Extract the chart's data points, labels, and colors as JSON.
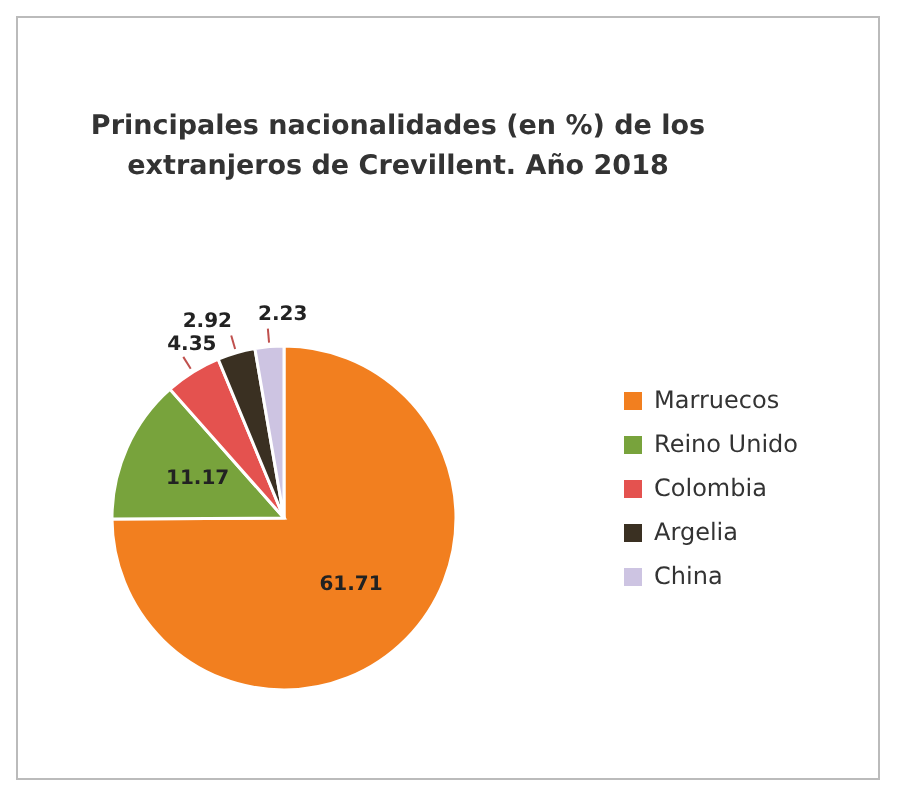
{
  "chart_data": {
    "type": "pie",
    "title": "Principales nacionalidades  (en %) de los extranjeros de Crevillent. Año 2018",
    "categories": [
      "Marruecos",
      "Reino Unido",
      "Colombia",
      "Argelia",
      "China"
    ],
    "values": [
      61.71,
      11.17,
      4.35,
      2.92,
      2.23
    ],
    "colors": [
      "#f27f1f",
      "#78a33c",
      "#e4524f",
      "#3a3022",
      "#cdc4e2"
    ],
    "data_labels": true,
    "legend": "right"
  }
}
